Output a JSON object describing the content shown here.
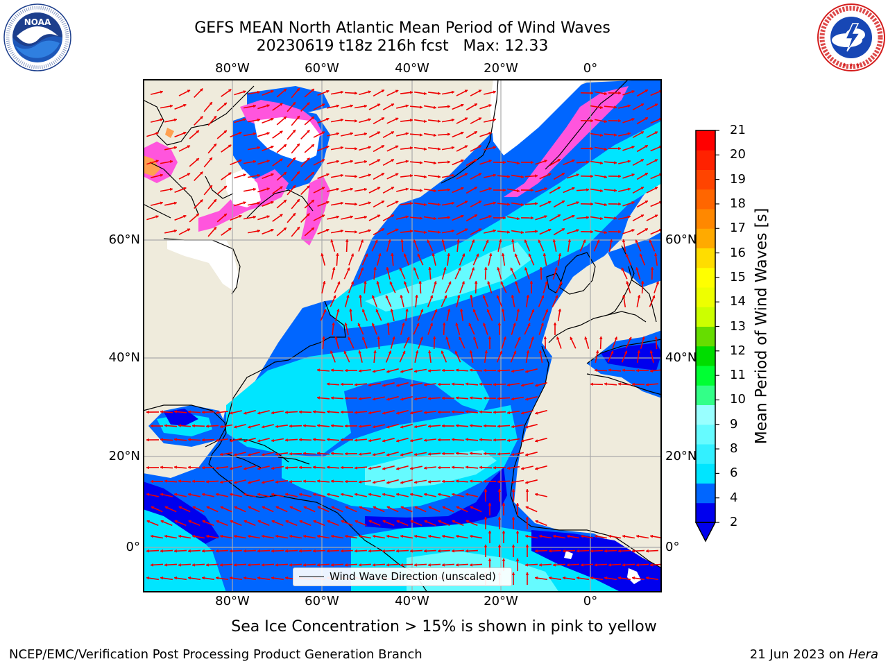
{
  "title": {
    "line1": "GEFS MEAN North Atlantic Mean Period of Wind Waves",
    "line2": "20230619 t18z 216h fcst   Max: 12.33"
  },
  "logos": {
    "noaa": {
      "icon": "noaa-logo",
      "text": "NOAA",
      "ring_text": "NATIONAL OCEANIC AND ATMOSPHERIC ADMINISTRATION · U.S. DEPARTMENT OF COMMERCE"
    },
    "nws": {
      "icon": "nws-logo",
      "ring_text": "NATIONAL WEATHER SERVICE"
    }
  },
  "axes": {
    "lon_labels": [
      "80°W",
      "60°W",
      "40°W",
      "20°W",
      "0°"
    ],
    "lat_labels": [
      "60°N",
      "40°N",
      "20°N",
      "0°"
    ]
  },
  "legend": {
    "label": "Wind Wave Direction (unscaled)"
  },
  "colorbar": {
    "label": "Mean Period of Wind Waves [s]",
    "ticks": [
      "21",
      "20",
      "19",
      "18",
      "17",
      "16",
      "15",
      "14",
      "13",
      "12",
      "11",
      "10",
      "9",
      "8",
      "6",
      "4",
      "2"
    ],
    "colors": [
      "#0000ee",
      "#0066ff",
      "#00e5ff",
      "#33f0ff",
      "#66fbff",
      "#99ffff",
      "#33ff88",
      "#00ff33",
      "#00dd00",
      "#66dd00",
      "#ccff00",
      "#eeff00",
      "#ffff00",
      "#ffdd00",
      "#ffaa00",
      "#ff8800",
      "#ff6600",
      "#ff4400",
      "#ff2200",
      "#ff0000"
    ],
    "extend_color": "#0000ee"
  },
  "colors": {
    "land": "#efebdc",
    "ice_pink": "#ff55dd",
    "ocean_dark": "#0000ee",
    "ocean_blue": "#0066ff",
    "ocean_cyan": "#00e5ff",
    "ocean_light": "#66fbff",
    "arrow": "#ee0000",
    "grid": "#aaaaaa"
  },
  "note": "Sea Ice Concentration > 15% is shown in pink to yellow",
  "footer": {
    "left": "NCEP/EMC/Verification Post Processing Product Generation Branch",
    "right_prefix": "21 Jun 2023 on ",
    "right_machine": "Hera"
  }
}
